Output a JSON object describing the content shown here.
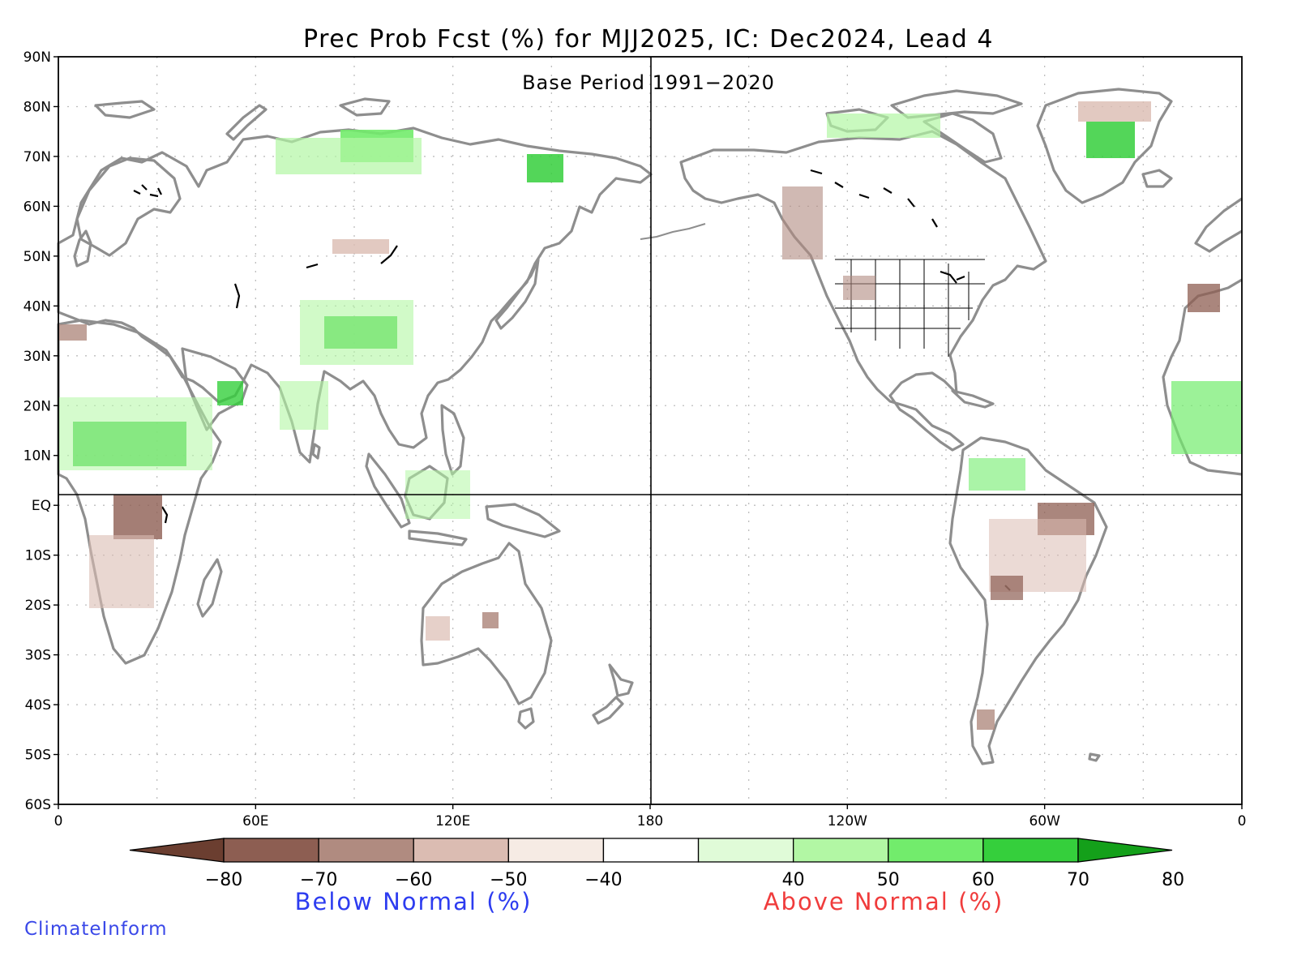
{
  "map": {
    "title": "Prec Prob Fcst (%) for MJJ2025, IC: Dec2024, Lead 4",
    "subtitle": "Base Period 1991−2020",
    "lat_labels": [
      "90N",
      "80N",
      "70N",
      "60N",
      "50N",
      "40N",
      "30N",
      "20N",
      "10N",
      "EQ",
      "10S",
      "20S",
      "30S",
      "40S",
      "50S",
      "60S"
    ],
    "lon_labels": [
      "0",
      "60E",
      "120E",
      "180",
      "120W",
      "60W",
      "0"
    ],
    "colors": {
      "land_outline": "#8e8e8e",
      "border_lines": "#9a9a9a",
      "grid": "#bdbdbd",
      "lakes": "#000000"
    }
  },
  "colorbar": {
    "ticks": [
      "−80",
      "−70",
      "−60",
      "−50",
      "−40",
      "40",
      "50",
      "60",
      "70",
      "80"
    ],
    "bins": [
      {
        "range": "< -80",
        "color": "#6b3e30"
      },
      {
        "range": "-80 to -70",
        "color": "#8d5e52"
      },
      {
        "range": "-70 to -60",
        "color": "#b08b80"
      },
      {
        "range": "-60 to -50",
        "color": "#dbbcb2"
      },
      {
        "range": "-50 to -40",
        "color": "#f6ebe4"
      },
      {
        "range": "-40 to 40",
        "color": "#ffffff"
      },
      {
        "range": "40 to 50",
        "color": "#e0fbd8"
      },
      {
        "range": "50 to 60",
        "color": "#b2f7a4"
      },
      {
        "range": "60 to 70",
        "color": "#72ec6c"
      },
      {
        "range": "70 to 80",
        "color": "#35cf3c"
      },
      {
        "range": "> 80",
        "color": "#14a01a"
      }
    ],
    "below_label": "Below Normal (%)",
    "above_label": "Above Normal (%)",
    "below_color": "#2d3cf0",
    "above_color": "#f03c3c"
  },
  "credit": {
    "text": "ClimateInform",
    "color": "#3a48e8"
  }
}
